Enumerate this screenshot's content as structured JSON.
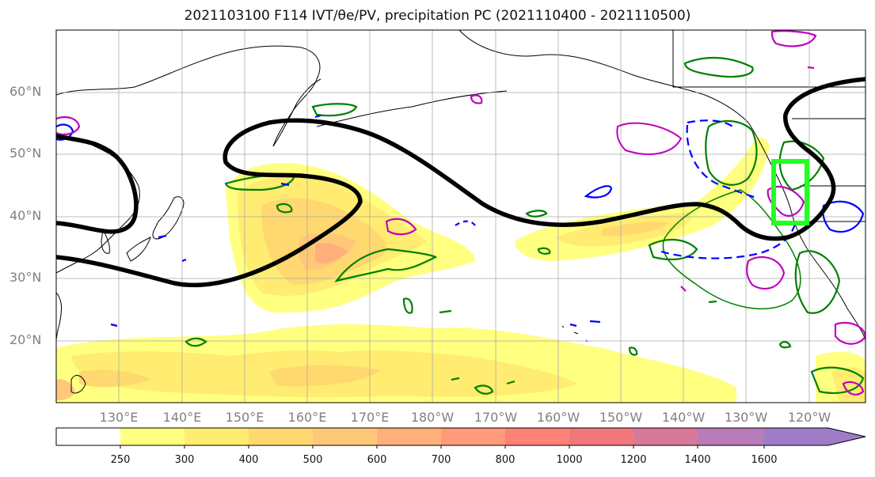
{
  "title": "2021103100 F114 IVT/θe/PV, precipitation PC (2021110400 - 2021110500)",
  "map": {
    "lat_labels": [
      "60°N",
      "50°N",
      "40°N",
      "30°N",
      "20°N"
    ],
    "lon_labels": [
      "130°E",
      "140°E",
      "150°E",
      "160°E",
      "170°E",
      "180°W",
      "170°W",
      "160°W",
      "150°W",
      "140°W",
      "130°W",
      "120°W"
    ],
    "highlight_box_color": "#22ff22",
    "trough_line_color": "#000000",
    "theta_contour_colors": [
      "#008000",
      "#0000ff",
      "#c000c0"
    ]
  },
  "colorbar": {
    "ticks": [
      "250",
      "300",
      "400",
      "500",
      "600",
      "700",
      "800",
      "1000",
      "1200",
      "1400",
      "1600"
    ],
    "colors": [
      "#ffffff",
      "#ffff80",
      "#ffec70",
      "#ffd870",
      "#ffc878",
      "#ffb07a",
      "#ff9a7a",
      "#ff8278",
      "#f0787c",
      "#d8789a",
      "#b87cb8",
      "#a07cc8"
    ]
  }
}
